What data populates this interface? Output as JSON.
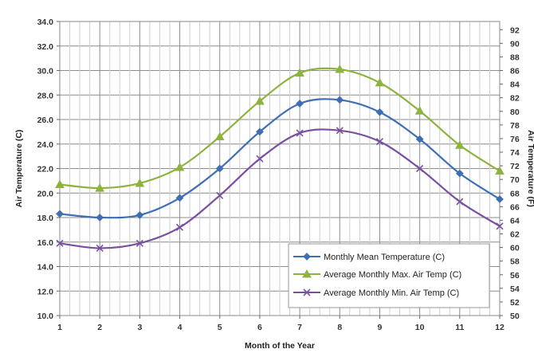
{
  "chart_data": {
    "type": "line",
    "title": "",
    "xlabel": "Month of the Year",
    "ylabel": "Air Temperature (C)",
    "y2label": "Air Temperature (F)",
    "x": [
      1,
      2,
      3,
      4,
      5,
      6,
      7,
      8,
      9,
      10,
      11,
      12
    ],
    "ylim": [
      10.0,
      34.0
    ],
    "yticks": [
      "10.0",
      "12.0",
      "14.0",
      "16.0",
      "18.0",
      "20.0",
      "22.0",
      "24.0",
      "26.0",
      "28.0",
      "30.0",
      "32.0",
      "34.0"
    ],
    "y2lim": [
      50,
      93.2
    ],
    "y2ticks": [
      "50",
      "52",
      "54",
      "56",
      "58",
      "60",
      "62",
      "64",
      "66",
      "68",
      "70",
      "72",
      "74",
      "76",
      "78",
      "80",
      "82",
      "84",
      "86",
      "88",
      "90",
      "92"
    ],
    "grid": true,
    "legend_position": "bottom-right",
    "series": [
      {
        "name": "Monthly Mean Temperature (C)",
        "color": "#3f6fb3",
        "marker": "diamond",
        "values": [
          18.3,
          18.0,
          18.2,
          19.6,
          22.0,
          25.0,
          27.3,
          27.6,
          26.6,
          24.4,
          21.6,
          19.5
        ]
      },
      {
        "name": "Average Monthly Max. Air Temp (C)",
        "color": "#8db33e",
        "marker": "triangle",
        "values": [
          20.7,
          20.4,
          20.8,
          22.1,
          24.6,
          27.5,
          29.8,
          30.1,
          29.0,
          26.7,
          23.9,
          21.8
        ]
      },
      {
        "name": "Average Monthly Min. Air Temp (C)",
        "color": "#7a4f9e",
        "marker": "x",
        "values": [
          15.9,
          15.5,
          15.9,
          17.2,
          19.8,
          22.8,
          24.9,
          25.1,
          24.2,
          22.0,
          19.3,
          17.3
        ]
      }
    ]
  }
}
